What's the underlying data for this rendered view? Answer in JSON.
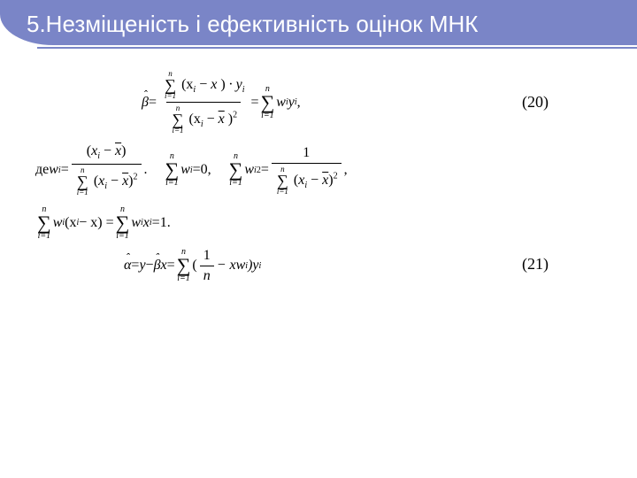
{
  "colors": {
    "header_bg": "#7a85c7",
    "header_text": "#ffffff",
    "body_bg": "#ffffff",
    "text": "#000000"
  },
  "header": {
    "title": "5.Незміщеність і ефективність оцінок МНК"
  },
  "math": {
    "beta_hat": "β",
    "alpha_hat": "α",
    "eq_sign": " = ",
    "comma": ",",
    "period": ".",
    "zero": "0",
    "one": "1",
    "de": "де ",
    "w": "w",
    "x": "x",
    "y": "y",
    "n": "n",
    "i": "i",
    "ieq1": "i=1",
    "sigma_char": "∑",
    "xi_minus_x": "(x",
    "minus_xbar_close": ")",
    "xbar": "x",
    "dot_yi": " · y",
    "sq": "2",
    "wi_yi_a": " w",
    "wi_yi_b": " y",
    "eq20_num": "(20)",
    "eq21_num": "(21)",
    "minus": " − ",
    "minus2": " − ",
    "frac1_n": "n",
    "open_paren": " (",
    "close_paren_yi_a": " − xw",
    "close_paren_yi_b": ")y",
    "wixi_a": "w",
    "wixi_b": " (x",
    "wixi_c": " − x",
    "wixi_d": ")",
    "wi_xi_a": "w",
    "wi_xi_b": "x"
  }
}
